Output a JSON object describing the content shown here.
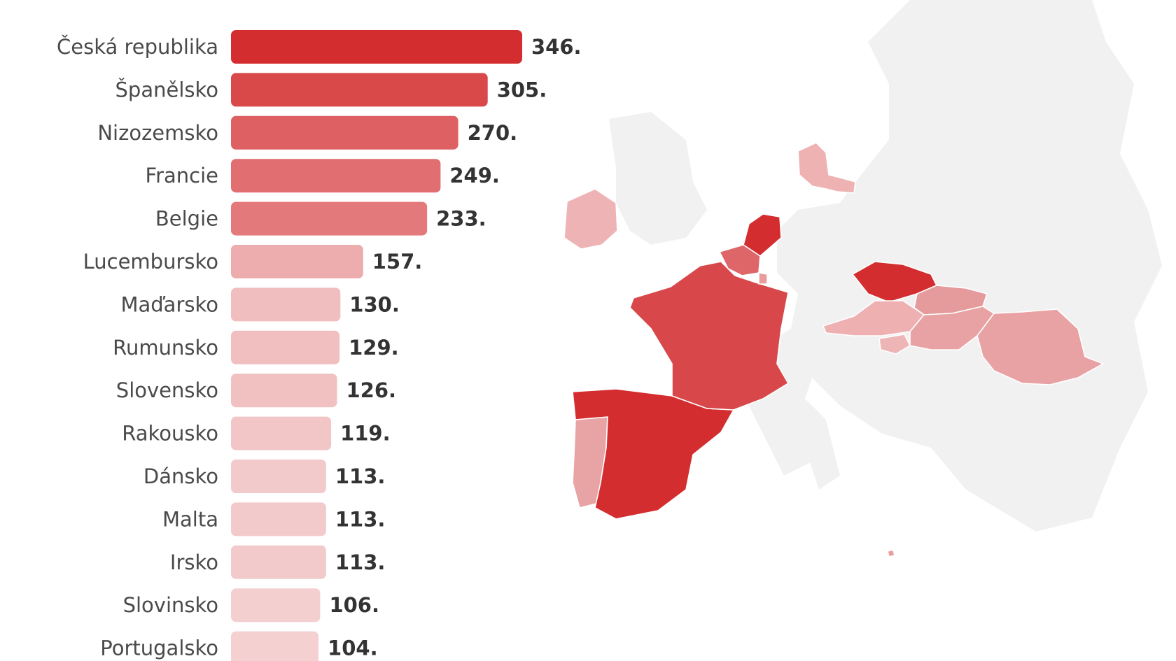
{
  "chart_data": {
    "type": "bar",
    "orientation": "horizontal",
    "categories": [
      "Česká republika",
      "Španělsko",
      "Nizozemsko",
      "Francie",
      "Belgie",
      "Lucembursko",
      "Maďarsko",
      "Rumunsko",
      "Slovensko",
      "Rakousko",
      "Dánsko",
      "Malta",
      "Irsko",
      "Slovinsko",
      "Portugalsko"
    ],
    "values": [
      346,
      305,
      270,
      249,
      233,
      157,
      130,
      129,
      126,
      119,
      113,
      113,
      113,
      106,
      104
    ],
    "value_labels": [
      "346.",
      "305.",
      "270.",
      "249.",
      "233.",
      "157.",
      "130.",
      "129.",
      "126.",
      "119.",
      "113.",
      "113.",
      "113.",
      "106.",
      "104."
    ],
    "title": "",
    "xlabel": "",
    "ylabel": "",
    "xlim": [
      0,
      346
    ],
    "grid": false,
    "legend": "none",
    "color_scale": {
      "low": "#f4d0d1",
      "high": "#d42d2f"
    },
    "map": {
      "type": "choropleth",
      "region": "Europe",
      "base_color": "#f1f1f1",
      "highlighted_countries": [
        "Česká republika",
        "Španělsko",
        "Nizozemsko",
        "Francie",
        "Belgie",
        "Lucembursko",
        "Maďarsko",
        "Rumunsko",
        "Slovensko",
        "Rakousko",
        "Dánsko",
        "Malta",
        "Irsko",
        "Slovinsko",
        "Portugalsko"
      ]
    }
  }
}
